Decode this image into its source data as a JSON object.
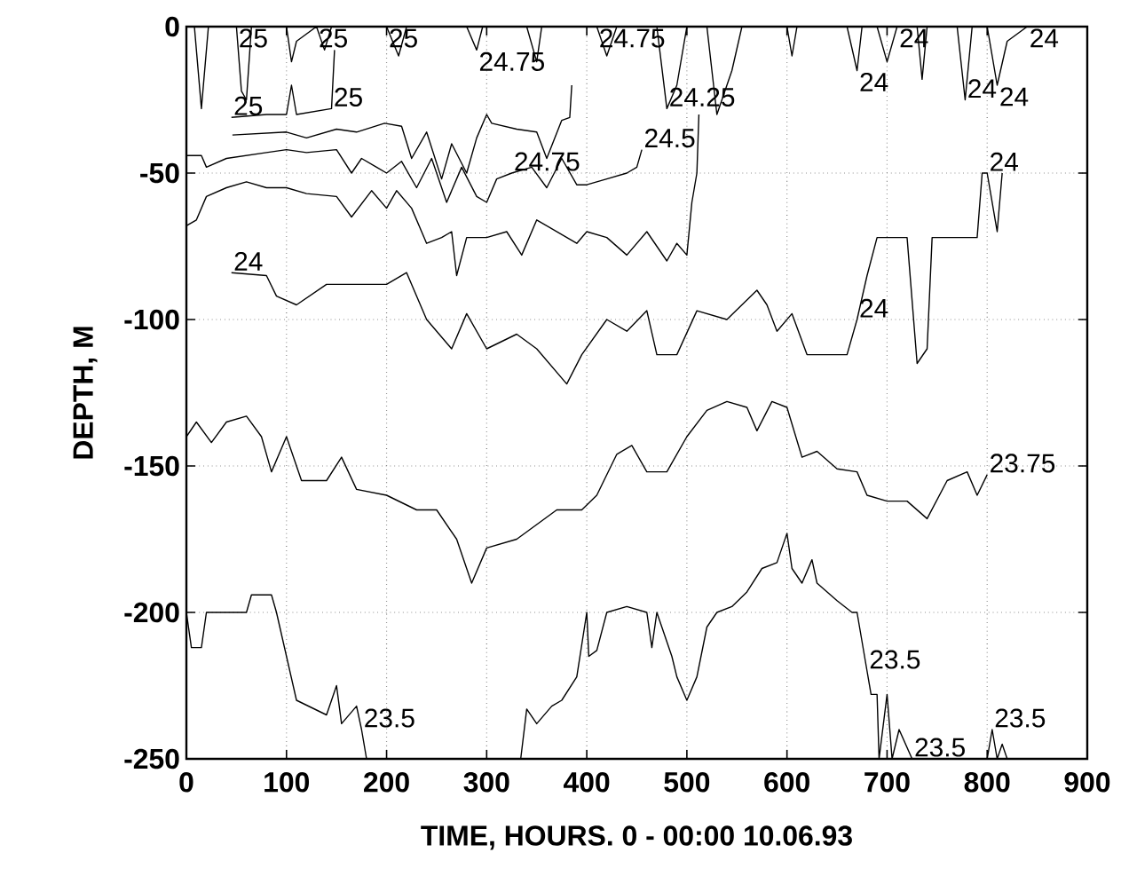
{
  "chart_data": {
    "type": "line",
    "xlabel": "TIME, HOURS. 0 - 00:00 10.06.93",
    "ylabel": "DEPTH, M",
    "xlim": [
      0,
      900
    ],
    "ylim": [
      -250,
      0
    ],
    "xticks": [
      0,
      100,
      200,
      300,
      400,
      500,
      600,
      700,
      800,
      900
    ],
    "yticks": [
      -250,
      -200,
      -150,
      -100,
      -50,
      0
    ],
    "grid": true,
    "series": [
      {
        "color": "#000000",
        "x": [
          0,
          8,
          15,
          22,
          50,
          55,
          60,
          65,
          100,
          105,
          110,
          130,
          138,
          145,
          200,
          212,
          220,
          280,
          290,
          296,
          340,
          350,
          355,
          410,
          420,
          430,
          470,
          480,
          490,
          500,
          520,
          530,
          545,
          555,
          570,
          600,
          605,
          610,
          660,
          670,
          675,
          690,
          700,
          710,
          730,
          735,
          740,
          770,
          778,
          785,
          800,
          810,
          820,
          840
        ],
        "values": [
          0,
          0,
          -28,
          0,
          0,
          -22,
          -25,
          0,
          0,
          -12,
          -5,
          0,
          -8,
          0,
          0,
          -10,
          0,
          0,
          -8,
          0,
          0,
          -12,
          0,
          0,
          -10,
          0,
          0,
          -28,
          -20,
          0,
          0,
          -30,
          -15,
          0,
          0,
          0,
          -10,
          0,
          0,
          -15,
          0,
          0,
          -12,
          0,
          0,
          -18,
          0,
          0,
          -25,
          0,
          0,
          -20,
          -5,
          0
        ]
      },
      {
        "color": "#000000",
        "x": [
          45,
          80,
          100,
          105,
          110,
          145,
          148
        ],
        "values": [
          -31,
          -30,
          -30,
          -20,
          -30,
          -28,
          -8
        ]
      },
      {
        "color": "#000000",
        "x": [
          46,
          100,
          120,
          150,
          170,
          198,
          215,
          225,
          240,
          255,
          265,
          280,
          290,
          300,
          305,
          330,
          350,
          360,
          375,
          383,
          385
        ],
        "values": [
          -37,
          -36,
          -38,
          -35,
          -36,
          -33,
          -34,
          -45,
          -36,
          -52,
          -40,
          -50,
          -38,
          -30,
          -33,
          -35,
          -36,
          -45,
          -32,
          -31,
          -20
        ]
      },
      {
        "color": "#000000",
        "x": [
          0,
          15,
          20,
          40,
          80,
          100,
          120,
          150,
          165,
          175,
          190,
          200,
          215,
          230,
          245,
          260,
          275,
          290,
          300,
          310,
          325,
          345,
          360,
          375,
          390,
          400,
          420,
          440,
          450,
          455
        ],
        "values": [
          -44,
          -44,
          -48,
          -45,
          -43,
          -42,
          -43,
          -42,
          -50,
          -45,
          -48,
          -50,
          -46,
          -55,
          -45,
          -60,
          -48,
          -58,
          -60,
          -52,
          -50,
          -48,
          -55,
          -45,
          -54,
          -54,
          -52,
          -50,
          -48,
          -42
        ]
      },
      {
        "color": "#000000",
        "x": [
          0,
          10,
          20,
          40,
          60,
          80,
          100,
          120,
          150,
          165,
          185,
          200,
          210,
          225,
          240,
          255,
          265,
          270,
          280,
          300,
          320,
          335,
          350,
          370,
          390,
          400,
          420,
          440,
          460,
          480,
          490,
          500,
          505,
          510,
          512
        ],
        "values": [
          -68,
          -66,
          -58,
          -55,
          -53,
          -55,
          -55,
          -57,
          -58,
          -65,
          -56,
          -62,
          -56,
          -62,
          -74,
          -72,
          -70,
          -85,
          -72,
          -72,
          -70,
          -78,
          -66,
          -70,
          -74,
          -70,
          -72,
          -78,
          -70,
          -80,
          -74,
          -78,
          -60,
          -50,
          -30
        ]
      },
      {
        "color": "#000000",
        "x": [
          45,
          80,
          90,
          110,
          140,
          200,
          220,
          240,
          265,
          280,
          300,
          330,
          350,
          380,
          395,
          420,
          440,
          460,
          470,
          490,
          510,
          540,
          570,
          580,
          590,
          605,
          620,
          660,
          670,
          680,
          690,
          720,
          730,
          740,
          745,
          790,
          795,
          800,
          810,
          815
        ],
        "values": [
          -84,
          -85,
          -92,
          -95,
          -88,
          -88,
          -84,
          -100,
          -110,
          -98,
          -110,
          -105,
          -110,
          -122,
          -112,
          -100,
          -104,
          -97,
          -112,
          -112,
          -97,
          -100,
          -90,
          -95,
          -104,
          -98,
          -112,
          -112,
          -100,
          -85,
          -72,
          -72,
          -115,
          -110,
          -72,
          -72,
          -50,
          -50,
          -70,
          -50
        ]
      },
      {
        "color": "#000000",
        "x": [
          0,
          10,
          25,
          40,
          60,
          75,
          85,
          95,
          100,
          115,
          140,
          155,
          170,
          200,
          230,
          250,
          270,
          285,
          300,
          330,
          370,
          395,
          410,
          430,
          445,
          460,
          480,
          500,
          520,
          540,
          560,
          570,
          585,
          600,
          615,
          630,
          650,
          670,
          680,
          700,
          720,
          740,
          760,
          780,
          790,
          800
        ],
        "values": [
          -140,
          -135,
          -142,
          -135,
          -133,
          -140,
          -152,
          -144,
          -140,
          -155,
          -155,
          -147,
          -158,
          -160,
          -165,
          -165,
          -175,
          -190,
          -178,
          -175,
          -165,
          -165,
          -160,
          -146,
          -143,
          -152,
          -152,
          -140,
          -131,
          -128,
          -130,
          -138,
          -128,
          -130,
          -147,
          -145,
          -151,
          -152,
          -160,
          -162,
          -162,
          -168,
          -155,
          -152,
          -160,
          -153
        ]
      },
      {
        "color": "#000000",
        "x": [
          800,
          805,
          810,
          815,
          820,
          830
        ],
        "values": [
          -250,
          -240,
          -250,
          -245,
          -250,
          -250
        ]
      },
      {
        "color": "#000000",
        "x": [
          0,
          5,
          15,
          20,
          60,
          65,
          85,
          90,
          110,
          140,
          150,
          155,
          170,
          175,
          180,
          200,
          334,
          340,
          350,
          365,
          375,
          390,
          400,
          402,
          410,
          420,
          440,
          460,
          465,
          470,
          485,
          490,
          500,
          510,
          520,
          530,
          545,
          560,
          575,
          590,
          600,
          605,
          615,
          625,
          630,
          650,
          665,
          670,
          680,
          684,
          690,
          692,
          700,
          705,
          712,
          725
        ],
        "values": [
          -200,
          -212,
          -212,
          -200,
          -200,
          -194,
          -194,
          -200,
          -230,
          -235,
          -225,
          -238,
          -232,
          -240,
          -250,
          null,
          -250,
          -233,
          -238,
          -232,
          -230,
          -222,
          -200,
          -215,
          -213,
          -200,
          -198,
          -200,
          -212,
          -200,
          -215,
          -222,
          -230,
          -222,
          -205,
          -200,
          -198,
          -193,
          -185,
          -183,
          -173,
          -185,
          -190,
          -182,
          -190,
          -196,
          -200,
          -200,
          -220,
          -228,
          -228,
          -250,
          -228,
          -250,
          -240,
          -250
        ]
      }
    ],
    "annotations": [
      {
        "text": "25",
        "x": 50,
        "y": 0
      },
      {
        "text": "25",
        "x": 130,
        "y": 0
      },
      {
        "text": "25",
        "x": 145,
        "y": -28
      },
      {
        "text": "25",
        "x": 200,
        "y": 0
      },
      {
        "text": "24.75",
        "x": 290,
        "y": -8
      },
      {
        "text": "24.75",
        "x": 410,
        "y": 0
      },
      {
        "text": "24.25",
        "x": 480,
        "y": -28
      },
      {
        "text": "24.5",
        "x": 455,
        "y": -42
      },
      {
        "text": "25",
        "x": 45,
        "y": -31
      },
      {
        "text": "24.75",
        "x": 325,
        "y": -50
      },
      {
        "text": "24",
        "x": 45,
        "y": -84
      },
      {
        "text": "24",
        "x": 670,
        "y": -15
      },
      {
        "text": "24",
        "x": 710,
        "y": 0
      },
      {
        "text": "24",
        "x": 778,
        "y": -25
      },
      {
        "text": "24",
        "x": 810,
        "y": -20
      },
      {
        "text": "24",
        "x": 840,
        "y": 0
      },
      {
        "text": "24",
        "x": 800,
        "y": -50
      },
      {
        "text": "24",
        "x": 670,
        "y": -100
      },
      {
        "text": "23.75",
        "x": 800,
        "y": -153
      },
      {
        "text": "23.5",
        "x": 175,
        "y": -240
      },
      {
        "text": "23.5",
        "x": 680,
        "y": -220
      },
      {
        "text": "23.5",
        "x": 725,
        "y": -250
      },
      {
        "text": "23.5",
        "x": 805,
        "y": -240
      }
    ]
  }
}
